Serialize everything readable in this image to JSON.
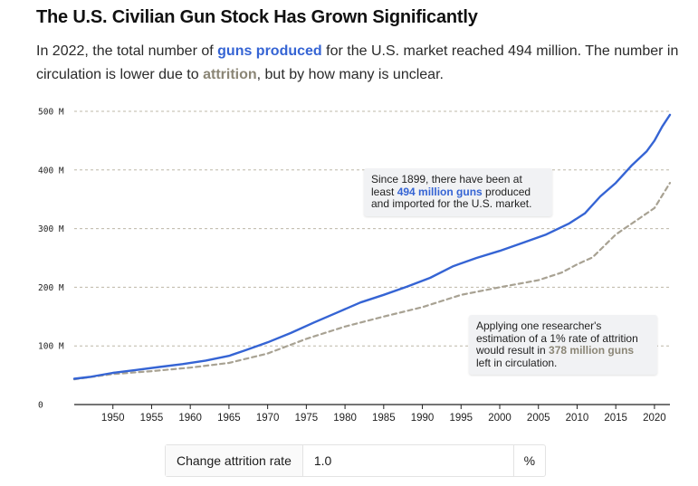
{
  "title": "The U.S. Civilian Gun Stock Has Grown Significantly",
  "subtitle": {
    "part1": "In 2022, the total number of ",
    "produced_label": "guns produced",
    "part2": " for the U.S. market reached 494 million. The number in circulation is lower due to ",
    "attrition_label": "attrition",
    "part3": ", but by how many is unclear."
  },
  "annotations": {
    "produced": {
      "text1": "Since 1899, there have been at least ",
      "highlight": "494 million guns",
      "text2": " produced and imported for the U.S. market."
    },
    "attrition": {
      "text1": "Applying one researcher's estimation of a 1% rate of attrition would result in ",
      "highlight": "378 million guns",
      "text2": " left in circulation."
    }
  },
  "control": {
    "label": "Change attrition rate",
    "value": "1.0",
    "unit": "%"
  },
  "colors": {
    "produced": "#3564d4",
    "attrition": "#a8a293"
  },
  "chart_data": {
    "type": "line",
    "title": "The U.S. Civilian Gun Stock Has Grown Significantly",
    "xlabel": "",
    "ylabel": "",
    "xlim": [
      1945,
      2022
    ],
    "ylim": [
      0,
      500
    ],
    "y_ticks": [
      0,
      100,
      200,
      300,
      400,
      500
    ],
    "y_tick_labels": [
      "0",
      "100 M",
      "200 M",
      "300 M",
      "400 M",
      "500 M"
    ],
    "x_ticks": [
      1950,
      1955,
      1960,
      1965,
      1970,
      1975,
      1980,
      1985,
      1990,
      1995,
      2000,
      2005,
      2010,
      2015,
      2020
    ],
    "grid": true,
    "series": [
      {
        "name": "guns produced",
        "style": "solid",
        "x": [
          1945,
          1947,
          1950,
          1953,
          1956,
          1959,
          1962,
          1965,
          1967,
          1970,
          1973,
          1976,
          1979,
          1982,
          1985,
          1988,
          1991,
          1994,
          1997,
          2000,
          2003,
          2006,
          2009,
          2011,
          2013,
          2015,
          2017,
          2019,
          2020,
          2021,
          2022
        ],
        "values": [
          44,
          47,
          54,
          59,
          64,
          69,
          75,
          83,
          92,
          106,
          122,
          140,
          157,
          174,
          187,
          201,
          216,
          236,
          250,
          262,
          276,
          290,
          309,
          326,
          355,
          378,
          407,
          432,
          450,
          474,
          494
        ]
      },
      {
        "name": "attrition",
        "style": "dashed",
        "x": [
          1945,
          1950,
          1955,
          1960,
          1965,
          1970,
          1975,
          1980,
          1985,
          1990,
          1995,
          2000,
          2005,
          2008,
          2010,
          2012,
          2015,
          2018,
          2020,
          2022
        ],
        "values": [
          43,
          52,
          57,
          63,
          71,
          87,
          112,
          133,
          150,
          166,
          187,
          200,
          212,
          225,
          239,
          251,
          290,
          317,
          335,
          378
        ]
      }
    ]
  }
}
